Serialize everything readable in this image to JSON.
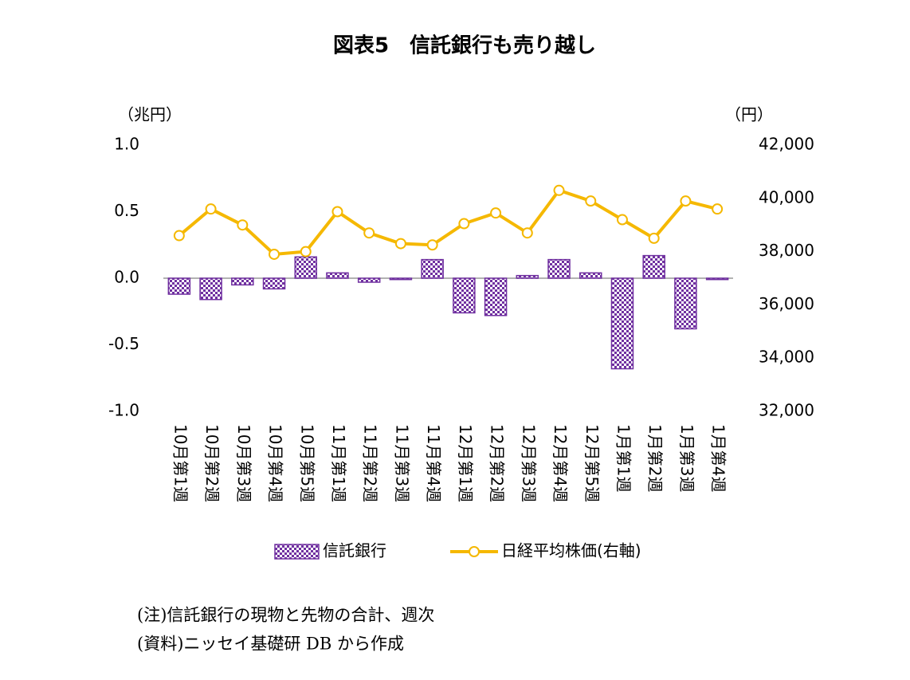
{
  "chart_data": {
    "type": "bar-line",
    "title": "図表5　信託銀行も売り越し",
    "y_label": "（兆円）",
    "y2_label": "（円）",
    "categories": [
      "10月第1週",
      "10月第2週",
      "10月第3週",
      "10月第4週",
      "10月第5週",
      "11月第1週",
      "11月第2週",
      "11月第3週",
      "11月第4週",
      "12月第1週",
      "12月第2週",
      "12月第3週",
      "12月第4週",
      "12月第5週",
      "1月第1週",
      "1月第2週",
      "1月第3週",
      "1月第4週"
    ],
    "series": [
      {
        "name": "信託銀行",
        "type": "bar",
        "color": "#7030a0",
        "values": [
          -0.12,
          -0.16,
          -0.05,
          -0.08,
          0.16,
          0.04,
          -0.03,
          -0.01,
          0.14,
          -0.26,
          -0.28,
          0.02,
          0.14,
          0.04,
          -0.68,
          0.17,
          -0.38,
          -0.01
        ]
      },
      {
        "name": "日経平均株価(右軸)",
        "type": "line",
        "axis": "y2",
        "color": "#f5b800",
        "values": [
          38600,
          39600,
          39000,
          37900,
          38000,
          39500,
          38700,
          38300,
          38250,
          39050,
          39450,
          38700,
          40300,
          39900,
          39200,
          38500,
          39900,
          39600
        ]
      }
    ],
    "ylim": [
      -1,
      1
    ],
    "yticks": [
      {
        "value": -1,
        "label": "-1.0"
      },
      -0.5,
      {
        "value": 0,
        "label": "0.0"
      },
      0.5,
      {
        "value": 1,
        "label": "1.0"
      }
    ],
    "y2lim": [
      32000,
      42000
    ],
    "y2ticks": [
      {
        "value": 32000,
        "label": "32,000"
      },
      {
        "value": 34000,
        "label": "34,000"
      },
      {
        "value": 36000,
        "label": "36,000"
      },
      {
        "value": 38000,
        "label": "38,000"
      },
      {
        "value": 40000,
        "label": "40,000"
      },
      {
        "value": 42000,
        "label": "42,000"
      }
    ],
    "grid": false,
    "notes": [
      "(注)信託銀行の現物と先物の合計、週次",
      "(資料)ニッセイ基礎研 DB から作成"
    ]
  }
}
